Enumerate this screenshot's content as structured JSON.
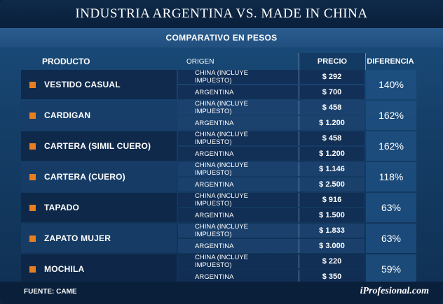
{
  "title": "INDUSTRIA ARGENTINA VS. MADE IN CHINA",
  "subtitle": "COMPARATIVO EN PESOS",
  "headers": {
    "producto": "PRODUCTO",
    "origen": "ORIGEN",
    "precio": "PRECIO",
    "diferencia": "DIFERENCIA"
  },
  "rows": [
    {
      "product": "VESTIDO CASUAL",
      "china_label": "CHINA (INCLUYE IMPUESTO)",
      "china_price": "$ 292",
      "arg_label": "ARGENTINA",
      "arg_price": "$ 700",
      "diff": "140%"
    },
    {
      "product": "CARDIGAN",
      "china_label": "CHINA (INCLUYE IMPUESTO)",
      "china_price": "$ 458",
      "arg_label": "ARGENTINA",
      "arg_price": "$ 1.200",
      "diff": "162%"
    },
    {
      "product": "CARTERA (SIMIL CUERO)",
      "china_label": "CHINA (INCLUYE IMPUESTO)",
      "china_price": "$ 458",
      "arg_label": "ARGENTINA",
      "arg_price": "$ 1.200",
      "diff": "162%"
    },
    {
      "product": "CARTERA (CUERO)",
      "china_label": "CHINA (INCLUYE IMPUESTO)",
      "china_price": "$ 1.146",
      "arg_label": "ARGENTINA",
      "arg_price": "$ 2.500",
      "diff": "118%"
    },
    {
      "product": "TAPADO",
      "china_label": "CHINA (INCLUYE IMPUESTO)",
      "china_price": "$ 916",
      "arg_label": "ARGENTINA",
      "arg_price": "$ 1.500",
      "diff": "63%"
    },
    {
      "product": "ZAPATO MUJER",
      "china_label": "CHINA (INCLUYE IMPUESTO)",
      "china_price": "$ 1.833",
      "arg_label": "ARGENTINA",
      "arg_price": "$ 3.000",
      "diff": "63%"
    },
    {
      "product": "MOCHILA",
      "china_label": "CHINA (INCLUYE IMPUESTO)",
      "china_price": "$ 220",
      "arg_label": "ARGENTINA",
      "arg_price": "$ 350",
      "diff": "59%"
    }
  ],
  "footer": {
    "source": "FUENTE: CAME",
    "logo": "iProfesional.com"
  },
  "colors": {
    "bullet": "#e87f1f",
    "background": "#153f68",
    "title_bar": "#0a1f3a"
  }
}
